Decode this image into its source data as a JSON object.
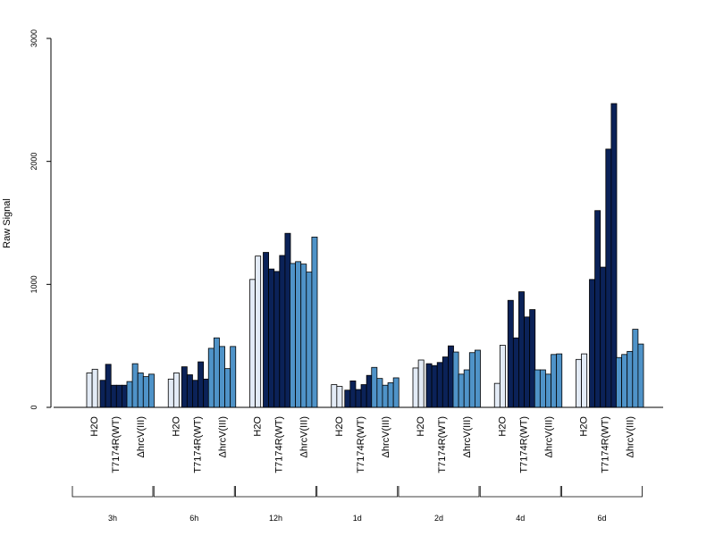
{
  "chart_data": {
    "type": "bar",
    "title": "",
    "xlabel": "",
    "ylabel": "Raw Signal",
    "ylim": [
      0,
      3000
    ],
    "yticks": [
      0,
      1000,
      2000,
      3000
    ],
    "grid": false,
    "legend": "none",
    "timepoints": [
      "3h",
      "6h",
      "12h",
      "1d",
      "2d",
      "4d",
      "6d"
    ],
    "treatments": [
      "H2O",
      "T7174R(WT)",
      "ΔhrcV(III)"
    ],
    "colors": {
      "H2O": "#e3ebf6",
      "T7174R(WT)": "#0b2258",
      "ΔhrcV(III)": "#4f93c8",
      "axis": "#000000"
    },
    "groups": [
      {
        "time": "3h",
        "H2O": [
          280,
          310
        ],
        "T7174R(WT)": [
          220,
          350,
          180,
          180,
          180
        ],
        "ΔhrcV(III)": [
          210,
          355,
          280,
          250,
          270
        ]
      },
      {
        "time": "6h",
        "H2O": [
          230,
          280
        ],
        "T7174R(WT)": [
          330,
          265,
          220,
          370,
          230
        ],
        "ΔhrcV(III)": [
          480,
          565,
          495,
          315,
          495
        ]
      },
      {
        "time": "12h",
        "H2O": [
          1040,
          1230
        ],
        "T7174R(WT)": [
          1260,
          1125,
          1105,
          1235,
          1415
        ],
        "ΔhrcV(III)": [
          1170,
          1185,
          1165,
          1100,
          1385
        ]
      },
      {
        "time": "1d",
        "H2O": [
          185,
          170
        ],
        "T7174R(WT)": [
          140,
          215,
          145,
          185,
          260
        ],
        "ΔhrcV(III)": [
          325,
          235,
          180,
          200,
          240
        ]
      },
      {
        "time": "2d",
        "H2O": [
          320,
          385
        ],
        "T7174R(WT)": [
          355,
          340,
          365,
          410,
          500
        ],
        "ΔhrcV(III)": [
          450,
          270,
          305,
          445,
          465
        ]
      },
      {
        "time": "4d",
        "H2O": [
          195,
          505
        ],
        "T7174R(WT)": [
          870,
          565,
          940,
          735,
          795
        ],
        "ΔhrcV(III)": [
          305,
          305,
          270,
          430,
          435
        ]
      },
      {
        "time": "6d",
        "H2O": [
          390,
          435
        ],
        "T7174R(WT)": [
          1040,
          1600,
          1140,
          2100,
          2470
        ],
        "ΔhrcV(III)": [
          405,
          430,
          455,
          635,
          515
        ]
      }
    ]
  }
}
